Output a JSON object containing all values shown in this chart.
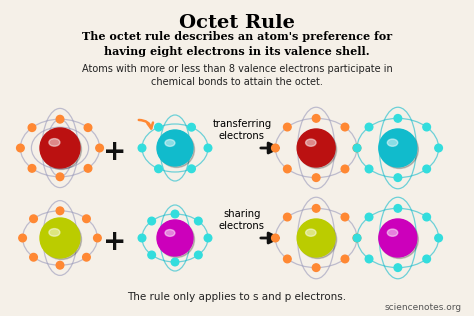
{
  "bg_color": "#f5f0e8",
  "title": "Octet Rule",
  "subtitle": "The octet rule describes an atom's preference for\nhaving eight electrons in its valence shell.",
  "desc": "Atoms with more or less than 8 valence electrons participate in\nchemical bonds to attain the octet.",
  "footer": "The rule only applies to s and p electrons.",
  "watermark": "sciencenotes.org",
  "row1_label": "transferring\nelectrons",
  "row2_label": "sharing\nelectrons",
  "atom1_color": "#bb1111",
  "atom2_color": "#11bbcc",
  "atom3_color": "#bbcc00",
  "atom4_color": "#cc00bb",
  "orbit1_color": "#9999bb",
  "orbit2_color": "#11bbcc",
  "electron_orange": "#ff8833",
  "electron_cyan": "#33dddd",
  "plus_color": "#111111",
  "arrow_color": "#111111",
  "curve_arrow_color": "#ff8833"
}
